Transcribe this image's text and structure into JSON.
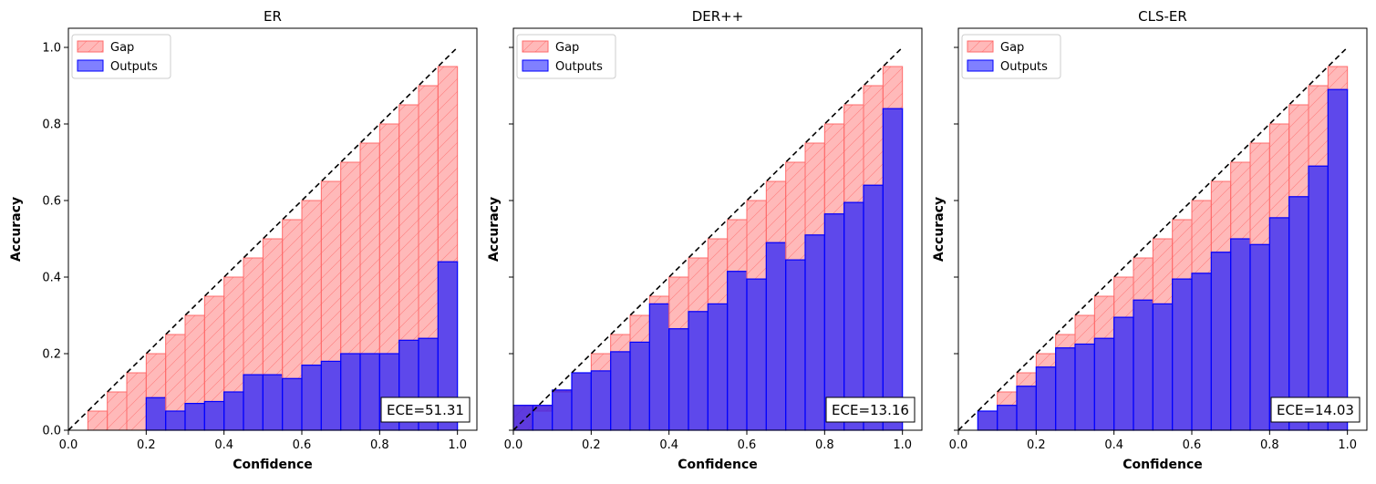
{
  "chart_data": [
    {
      "type": "bar",
      "title": "ER",
      "xlabel": "Confidence",
      "ylabel": "Accuracy",
      "xlim": [
        0,
        1.05
      ],
      "ylim": [
        0,
        1.05
      ],
      "bin_width": 0.05,
      "bin_edges": [
        0.0,
        0.05,
        0.1,
        0.15,
        0.2,
        0.25,
        0.3,
        0.35,
        0.4,
        0.45,
        0.5,
        0.55,
        0.6,
        0.65,
        0.7,
        0.75,
        0.8,
        0.85,
        0.9,
        0.95,
        1.0
      ],
      "series": [
        {
          "name": "Gap",
          "values": [
            0.0,
            0.05,
            0.1,
            0.15,
            0.2,
            0.25,
            0.3,
            0.35,
            0.4,
            0.45,
            0.5,
            0.55,
            0.6,
            0.65,
            0.7,
            0.75,
            0.8,
            0.85,
            0.9,
            0.95
          ]
        },
        {
          "name": "Outputs",
          "values": [
            0.0,
            0.0,
            0.0,
            0.0,
            0.085,
            0.05,
            0.07,
            0.075,
            0.1,
            0.145,
            0.145,
            0.135,
            0.17,
            0.18,
            0.2,
            0.2,
            0.2,
            0.235,
            0.24,
            0.44
          ]
        }
      ],
      "ece_label": "ECE=51.31",
      "legend_position": "upper-left",
      "diagonal": true
    },
    {
      "type": "bar",
      "title": "DER++",
      "xlabel": "Confidence",
      "ylabel": "Accuracy",
      "xlim": [
        0,
        1.05
      ],
      "ylim": [
        0,
        1.05
      ],
      "bin_width": 0.05,
      "bin_edges": [
        0.0,
        0.05,
        0.1,
        0.15,
        0.2,
        0.25,
        0.3,
        0.35,
        0.4,
        0.45,
        0.5,
        0.55,
        0.6,
        0.65,
        0.7,
        0.75,
        0.8,
        0.85,
        0.9,
        0.95,
        1.0
      ],
      "series": [
        {
          "name": "Gap",
          "values": [
            0.0,
            0.05,
            0.1,
            0.15,
            0.2,
            0.25,
            0.3,
            0.35,
            0.4,
            0.45,
            0.5,
            0.55,
            0.6,
            0.65,
            0.7,
            0.75,
            0.8,
            0.85,
            0.9,
            0.95
          ]
        },
        {
          "name": "Outputs",
          "values": [
            0.065,
            0.065,
            0.105,
            0.15,
            0.155,
            0.205,
            0.23,
            0.33,
            0.265,
            0.31,
            0.33,
            0.415,
            0.395,
            0.49,
            0.445,
            0.51,
            0.565,
            0.595,
            0.64,
            0.84
          ]
        }
      ],
      "ece_label": "ECE=13.16",
      "legend_position": "upper-left",
      "diagonal": true
    },
    {
      "type": "bar",
      "title": "CLS-ER",
      "xlabel": "Confidence",
      "ylabel": "Accuracy",
      "xlim": [
        0,
        1.05
      ],
      "ylim": [
        0,
        1.05
      ],
      "bin_width": 0.05,
      "bin_edges": [
        0.0,
        0.05,
        0.1,
        0.15,
        0.2,
        0.25,
        0.3,
        0.35,
        0.4,
        0.45,
        0.5,
        0.55,
        0.6,
        0.65,
        0.7,
        0.75,
        0.8,
        0.85,
        0.9,
        0.95,
        1.0
      ],
      "series": [
        {
          "name": "Gap",
          "values": [
            0.0,
            0.05,
            0.1,
            0.15,
            0.2,
            0.25,
            0.3,
            0.35,
            0.4,
            0.45,
            0.5,
            0.55,
            0.6,
            0.65,
            0.7,
            0.75,
            0.8,
            0.85,
            0.9,
            0.95
          ]
        },
        {
          "name": "Outputs",
          "values": [
            0.0,
            0.05,
            0.065,
            0.115,
            0.165,
            0.215,
            0.225,
            0.24,
            0.295,
            0.34,
            0.33,
            0.395,
            0.41,
            0.465,
            0.5,
            0.485,
            0.555,
            0.61,
            0.69,
            0.89
          ]
        }
      ],
      "ece_label": "ECE=14.03",
      "legend_position": "upper-left",
      "diagonal": true
    }
  ],
  "x_tick_labels": [
    "0.0",
    "0.2",
    "0.4",
    "0.6",
    "0.8",
    "1.0"
  ],
  "y_tick_labels": [
    "0.0",
    "0.2",
    "0.4",
    "0.6",
    "0.8",
    "1.0"
  ],
  "colors": {
    "gap_fill": "#ff8080",
    "gap_edge": "#ff6b6b",
    "outputs_fill": "#3a20e6",
    "outputs_edge": "#0000ff",
    "diagonal": "#000000"
  }
}
